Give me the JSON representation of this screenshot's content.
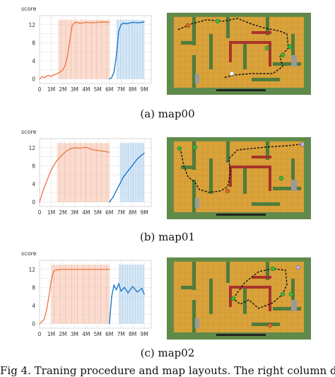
{
  "figure_caption": "Fig 4.  Traning procedure and map layouts. The right column display",
  "panels": [
    {
      "caption": "(a)  map00",
      "chart_data": {
        "type": "line",
        "ylabel": "score",
        "yticks": [
          0,
          4,
          8,
          12
        ],
        "xticks": [
          "0",
          "1M",
          "2M",
          "3M",
          "4M",
          "5M",
          "6M",
          "7M",
          "8M",
          "9M"
        ],
        "xlim": [
          0,
          9.6
        ],
        "ylim": [
          -1,
          14
        ],
        "series": [
          {
            "color": "#f07a4a",
            "band": "#f6c1aa",
            "x": [
              0,
              0.2,
              0.4,
              0.6,
              0.8,
              1.0,
              1.2,
              1.4,
              1.6,
              1.8,
              2.0,
              2.2,
              2.4,
              2.6,
              2.8,
              3.0,
              3.2,
              3.5,
              4.0,
              4.5,
              5.0,
              5.5,
              6.0
            ],
            "y": [
              0,
              0.5,
              0.3,
              0.6,
              0.8,
              0.5,
              0.9,
              1.0,
              1.3,
              1.6,
              2.0,
              3.0,
              5.0,
              8.5,
              11.8,
              12.4,
              12.5,
              12.3,
              12.5,
              12.4,
              12.5,
              12.6,
              12.5
            ]
          },
          {
            "color": "#1f78c8",
            "band": "#b7d6ee",
            "x": [
              6.0,
              6.2,
              6.4,
              6.6,
              6.8,
              7.0,
              7.2,
              7.5,
              8.0,
              8.5,
              9.0
            ],
            "y": [
              0,
              0.3,
              1.5,
              5.0,
              10.5,
              12.0,
              12.3,
              12.2,
              12.5,
              12.4,
              12.6
            ]
          }
        ]
      },
      "map": {
        "path": [
          [
            16,
            24
          ],
          [
            34,
            16
          ],
          [
            56,
            10
          ],
          [
            80,
            12
          ],
          [
            100,
            8
          ],
          [
            120,
            16
          ],
          [
            140,
            22
          ],
          [
            160,
            26
          ],
          [
            170,
            30
          ],
          [
            172,
            50
          ],
          [
            160,
            62
          ],
          [
            164,
            76
          ],
          [
            150,
            86
          ],
          [
            120,
            86
          ],
          [
            96,
            88
          ],
          [
            80,
            92
          ]
        ],
        "markers": [
          {
            "x": 30,
            "y": 18,
            "color": "#e2632a"
          },
          {
            "x": 72,
            "y": 12,
            "color": "#2fbe3a"
          },
          {
            "x": 142,
            "y": 50,
            "color": "#2fbe3a"
          },
          {
            "x": 164,
            "y": 60,
            "color": "#2fbe3a"
          },
          {
            "x": 174,
            "y": 48,
            "color": "#2fbe3a"
          },
          {
            "x": 92,
            "y": 86,
            "color": "#ffffff"
          }
        ]
      }
    },
    {
      "caption": "(b)  map01",
      "chart_data": {
        "type": "line",
        "ylabel": "score",
        "yticks": [
          0,
          4,
          8,
          12
        ],
        "xticks": [
          "0",
          "1M",
          "2M",
          "3M",
          "4M",
          "5M",
          "6M",
          "7M",
          "8M",
          "9M"
        ],
        "xlim": [
          0,
          9.6
        ],
        "ylim": [
          -1,
          14
        ],
        "series": [
          {
            "color": "#f07a4a",
            "band": "#f6c1aa",
            "x": [
              0,
              0.3,
              0.6,
              0.9,
              1.2,
              1.5,
              1.8,
              2.1,
              2.4,
              2.7,
              3.0,
              3.5,
              4.0,
              4.5,
              5.0,
              5.5,
              6.0
            ],
            "y": [
              0,
              2.5,
              4.5,
              6.5,
              8.0,
              9.2,
              10.0,
              10.8,
              11.4,
              11.8,
              12.0,
              11.9,
              12.1,
              11.6,
              11.4,
              11.2,
              11.0
            ]
          },
          {
            "color": "#1f78c8",
            "band": "#b7d6ee",
            "x": [
              6.0,
              6.3,
              6.6,
              6.9,
              7.2,
              7.5,
              7.8,
              8.1,
              8.4,
              8.7,
              9.0
            ],
            "y": [
              0,
              1.0,
              2.5,
              4.0,
              5.5,
              6.5,
              7.5,
              8.5,
              9.5,
              10.2,
              10.8
            ]
          }
        ]
      },
      "map": {
        "path": [
          [
            20,
            20
          ],
          [
            24,
            40
          ],
          [
            30,
            56
          ],
          [
            40,
            64
          ],
          [
            46,
            74
          ],
          [
            60,
            78
          ],
          [
            76,
            76
          ],
          [
            86,
            70
          ],
          [
            90,
            50
          ],
          [
            88,
            30
          ],
          [
            100,
            18
          ],
          [
            140,
            14
          ],
          [
            170,
            12
          ],
          [
            190,
            10
          ]
        ],
        "markers": [
          {
            "x": 18,
            "y": 16,
            "color": "#2fbe3a"
          },
          {
            "x": 40,
            "y": 14,
            "color": "#2fbe3a"
          },
          {
            "x": 162,
            "y": 58,
            "color": "#2fbe3a"
          },
          {
            "x": 86,
            "y": 76,
            "color": "#e2632a"
          },
          {
            "x": 192,
            "y": 10,
            "color": "#b8b4e8"
          }
        ]
      }
    },
    {
      "caption": "(c)  map02",
      "chart_data": {
        "type": "line",
        "ylabel": "score",
        "yticks": [
          0,
          4,
          8,
          12
        ],
        "xticks": [
          "0",
          "1M",
          "2M",
          "3M",
          "4M",
          "5M",
          "6M",
          "7M",
          "8M",
          "9M"
        ],
        "xlim": [
          0,
          9.6
        ],
        "ylim": [
          -1,
          14
        ],
        "series": [
          {
            "color": "#f07a4a",
            "band": "#f6c1aa",
            "x": [
              0,
              0.2,
              0.4,
              0.6,
              0.8,
              1.0,
              1.2,
              1.5,
              2.0,
              2.5,
              3.0,
              3.5,
              4.0,
              4.5,
              5.0,
              5.5,
              6.0
            ],
            "y": [
              0,
              0.4,
              1.0,
              3.0,
              6.0,
              9.5,
              11.6,
              11.9,
              12.0,
              12.0,
              12.0,
              12.0,
              12.0,
              12.0,
              12.0,
              12.0,
              12.0
            ]
          },
          {
            "color": "#1f78c8",
            "band": "#b7d6ee",
            "x": [
              6.0,
              6.2,
              6.4,
              6.6,
              6.8,
              7.0,
              7.3,
              7.6,
              8.0,
              8.4,
              8.8,
              9.0
            ],
            "y": [
              0,
              6.0,
              8.5,
              7.5,
              8.8,
              7.2,
              8.0,
              6.8,
              8.2,
              7.0,
              7.8,
              6.5
            ]
          }
        ]
      },
      "map": {
        "path": [
          [
            94,
            58
          ],
          [
            110,
            36
          ],
          [
            130,
            20
          ],
          [
            150,
            16
          ],
          [
            168,
            18
          ],
          [
            170,
            38
          ],
          [
            164,
            52
          ],
          [
            150,
            64
          ],
          [
            130,
            72
          ],
          [
            116,
            60
          ],
          [
            104,
            66
          ],
          [
            96,
            60
          ]
        ],
        "markers": [
          {
            "x": 94,
            "y": 58,
            "color": "#2fbe3a"
          },
          {
            "x": 150,
            "y": 16,
            "color": "#2fbe3a"
          },
          {
            "x": 164,
            "y": 52,
            "color": "#2fbe3a"
          },
          {
            "x": 176,
            "y": 52,
            "color": "#2fbe3a"
          },
          {
            "x": 146,
            "y": 96,
            "color": "#e2632a"
          },
          {
            "x": 186,
            "y": 14,
            "color": "#b8b4e8"
          }
        ]
      }
    }
  ]
}
